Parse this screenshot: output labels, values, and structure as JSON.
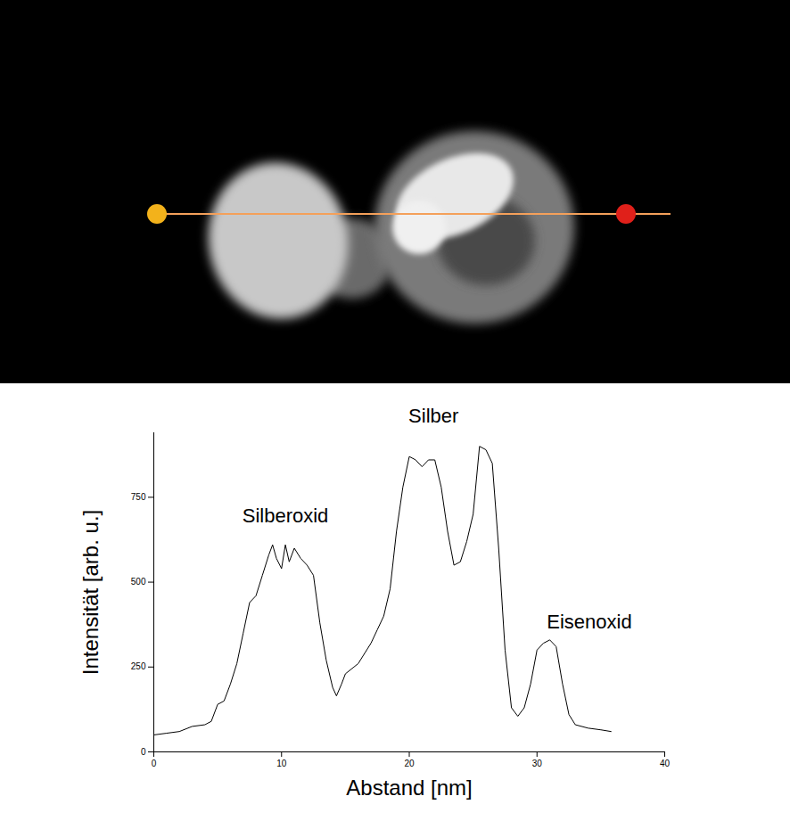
{
  "chart_data": {
    "type": "line",
    "x_label": "Abstand [nm]",
    "y_label": "Intensität [arb. u.]",
    "color": "#000000",
    "xlim": [
      0,
      40
    ],
    "xticks": [
      0,
      10,
      20,
      30,
      40
    ],
    "ylim": [
      0,
      940
    ],
    "yticks": [
      0,
      250,
      500,
      750
    ],
    "grid": false,
    "x": [
      0,
      1,
      2,
      3,
      4,
      4.5,
      5,
      5.5,
      6,
      6.5,
      7,
      7.5,
      8,
      8.5,
      9,
      9.3,
      9.6,
      10,
      10.3,
      10.6,
      11,
      11.5,
      12,
      12.5,
      13,
      13.5,
      14,
      14.3,
      14.7,
      15,
      16,
      17,
      17.5,
      18,
      18.5,
      19,
      19.5,
      20,
      20.5,
      21,
      21.5,
      22,
      22.5,
      23,
      23.5,
      24,
      24.5,
      25,
      25.5,
      26,
      26.5,
      27,
      27.5,
      28,
      28.5,
      29,
      29.5,
      30,
      30.5,
      31,
      31.5,
      32,
      32.5,
      33,
      34,
      35,
      35.8
    ],
    "values": [
      50,
      55,
      60,
      75,
      80,
      90,
      140,
      150,
      200,
      260,
      350,
      440,
      460,
      520,
      580,
      610,
      570,
      540,
      610,
      560,
      600,
      570,
      550,
      520,
      380,
      270,
      190,
      165,
      200,
      230,
      260,
      320,
      360,
      400,
      480,
      650,
      780,
      870,
      860,
      840,
      860,
      860,
      780,
      650,
      550,
      560,
      620,
      700,
      900,
      890,
      850,
      600,
      300,
      130,
      105,
      130,
      200,
      300,
      320,
      330,
      310,
      200,
      110,
      80,
      70,
      65,
      60
    ],
    "annotations": [
      {
        "text": "Silberoxid",
        "x": 10.3,
        "y": 695
      },
      {
        "text": "Silber",
        "x": 21.9,
        "y": 990
      },
      {
        "text": "Eisenoxid",
        "x": 34.1,
        "y": 383
      }
    ]
  }
}
